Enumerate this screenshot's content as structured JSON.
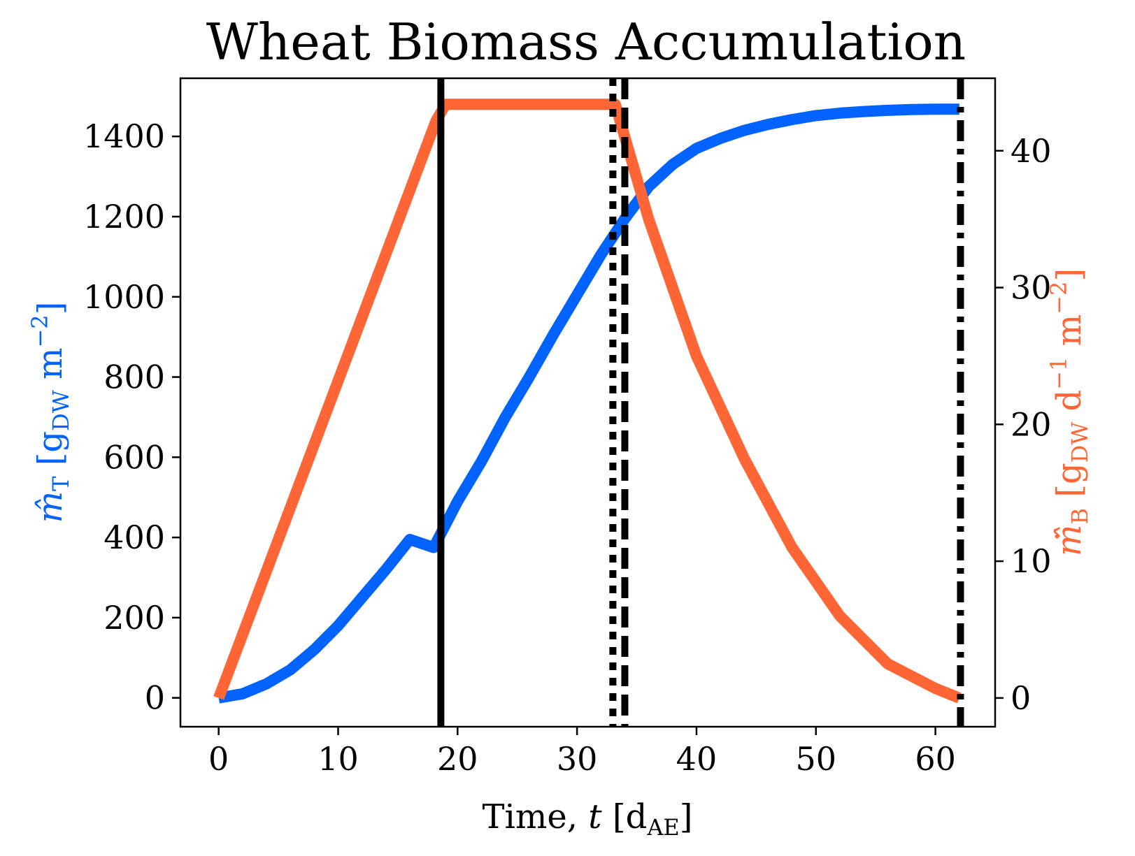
{
  "chart_data": {
    "type": "line",
    "title": "Wheat Biomass Accumulation",
    "xlabel": {
      "main": "Time, ",
      "var": "t",
      "unit_open": " [d",
      "unit_sub": "AE",
      "unit_close": "]"
    },
    "ylabel_left": {
      "sym": "m̂",
      "sub": "T",
      "unit": " [g",
      "unit_sub": "DW",
      "unit_rest": " m",
      "unit_sup": "−2",
      "close": "]"
    },
    "ylabel_right": {
      "sym": "ṁ̂",
      "sub": "B",
      "unit": " [g",
      "unit_sub": "DW",
      "unit_rest": " d",
      "unit_sup1": "−1",
      "unit_mid": " m",
      "unit_sup2": "−2",
      "close": "]"
    },
    "xlim": [
      -3.2,
      65.0
    ],
    "ylim_left": [
      -72,
      1545
    ],
    "ylim_right": [
      -2.1,
      45.3
    ],
    "x_ticks": [
      0,
      10,
      20,
      30,
      40,
      50,
      60
    ],
    "y_left_ticks": [
      0,
      200,
      400,
      600,
      800,
      1000,
      1200,
      1400
    ],
    "y_right_ticks": [
      0,
      10,
      20,
      30,
      40
    ],
    "colors": {
      "left_series": "#0062ff",
      "right_series": "#ff6535",
      "vlines": "#000000"
    },
    "series": [
      {
        "axis": "left",
        "x": [
          0,
          2,
          4,
          6,
          8,
          10,
          12,
          14,
          16,
          18,
          20,
          22,
          24,
          26,
          28,
          30,
          32,
          34,
          36,
          38,
          40,
          42,
          44,
          46,
          48,
          50,
          52,
          54,
          56,
          58,
          60,
          62
        ],
        "values": [
          0,
          10,
          35,
          70,
          120,
          180,
          250,
          320,
          395,
          375,
          490,
          590,
          700,
          800,
          905,
          1005,
          1105,
          1195,
          1275,
          1330,
          1370,
          1395,
          1415,
          1430,
          1442,
          1452,
          1458,
          1462,
          1465,
          1467,
          1468,
          1468
        ]
      },
      {
        "axis": "right",
        "x": [
          0,
          18.2,
          19,
          33.2,
          36,
          40,
          44,
          48,
          52,
          56,
          60,
          62
        ],
        "values": [
          0,
          42.2,
          43.4,
          43.4,
          35,
          25,
          17.5,
          11,
          6,
          2.5,
          0.7,
          0
        ]
      }
    ],
    "vlines": [
      {
        "x": 18.6,
        "style": "solid"
      },
      {
        "x": 33.0,
        "style": "dotted"
      },
      {
        "x": 34.0,
        "style": "dashed"
      },
      {
        "x": 62.1,
        "style": "dashdot"
      }
    ]
  }
}
